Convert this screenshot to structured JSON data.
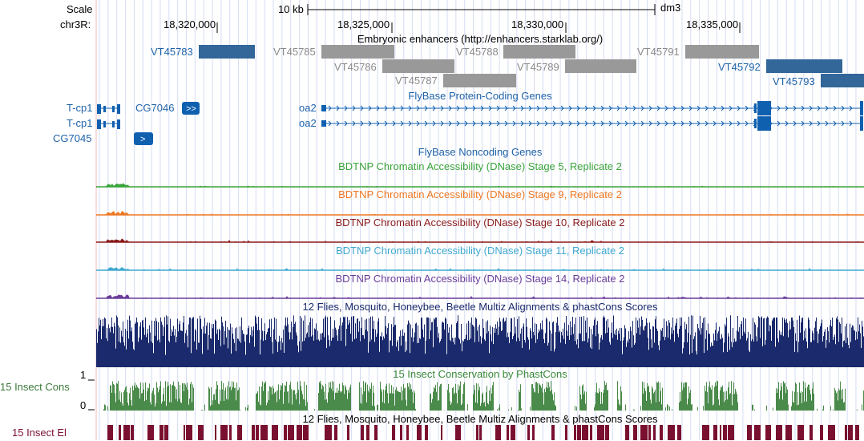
{
  "ruler": {
    "scale_label": "Scale",
    "chrom_label": "chr3R:",
    "scale_bar_text": "10 kb",
    "assembly": "dm3",
    "positions": [
      "18,320,000",
      "18,325,000",
      "18,330,000",
      "18,335,000"
    ]
  },
  "tracks": {
    "enhancers": {
      "title": "Embryonic enhancers (http://enhancers.starklab.org/)",
      "items": [
        {
          "name": "VT45783",
          "color": "#336699"
        },
        {
          "name": "VT45785",
          "color": "#999999"
        },
        {
          "name": "VT45786",
          "color": "#999999"
        },
        {
          "name": "VT45787",
          "color": "#999999"
        },
        {
          "name": "VT45788",
          "color": "#999999"
        },
        {
          "name": "VT45789",
          "color": "#999999"
        },
        {
          "name": "VT45791",
          "color": "#999999"
        },
        {
          "name": "VT45792",
          "color": "#336699"
        },
        {
          "name": "VT45793",
          "color": "#336699"
        }
      ]
    },
    "coding_genes": {
      "title": "FlyBase Protein-Coding Genes",
      "genes": [
        "T-cp1",
        "T-cp1",
        "CG7046",
        "CG7045",
        "oa2",
        "oa2"
      ]
    },
    "noncoding": {
      "title": "FlyBase Noncoding Genes"
    },
    "dnase": [
      {
        "title": "BDTNP Chromatin Accessibility (DNase) Stage 5, Replicate 2",
        "color": "#3aa43a"
      },
      {
        "title": "BDTNP Chromatin Accessibility (DNase) Stage 9, Replicate 2",
        "color": "#ee7722"
      },
      {
        "title": "BDTNP Chromatin Accessibility (DNase) Stage 10, Replicate 2",
        "color": "#8b1a1a"
      },
      {
        "title": "BDTNP Chromatin Accessibility (DNase) Stage 11, Replicate 2",
        "color": "#3fa9cf"
      },
      {
        "title": "BDTNP Chromatin Accessibility (DNase) Stage 14, Replicate 2",
        "color": "#6a3d9a"
      }
    ],
    "multiz": {
      "title": "12 Flies, Mosquito, Honeybee, Beetle Multiz Alignments & phastCons Scores",
      "color": "#1a2a6c"
    },
    "phastcons": {
      "title": "15 Insect Conservation by PhastCons",
      "side_label": "15 Insect Cons",
      "axis_top": "1",
      "axis_bottom": "0",
      "color": "#4a8a4a"
    },
    "elements": {
      "title": "12 Flies, Mosquito, Honeybee, Beetle Multiz Alignments & phastCons Scores",
      "side_label": "15 Insect El",
      "color": "#7a1030"
    }
  }
}
